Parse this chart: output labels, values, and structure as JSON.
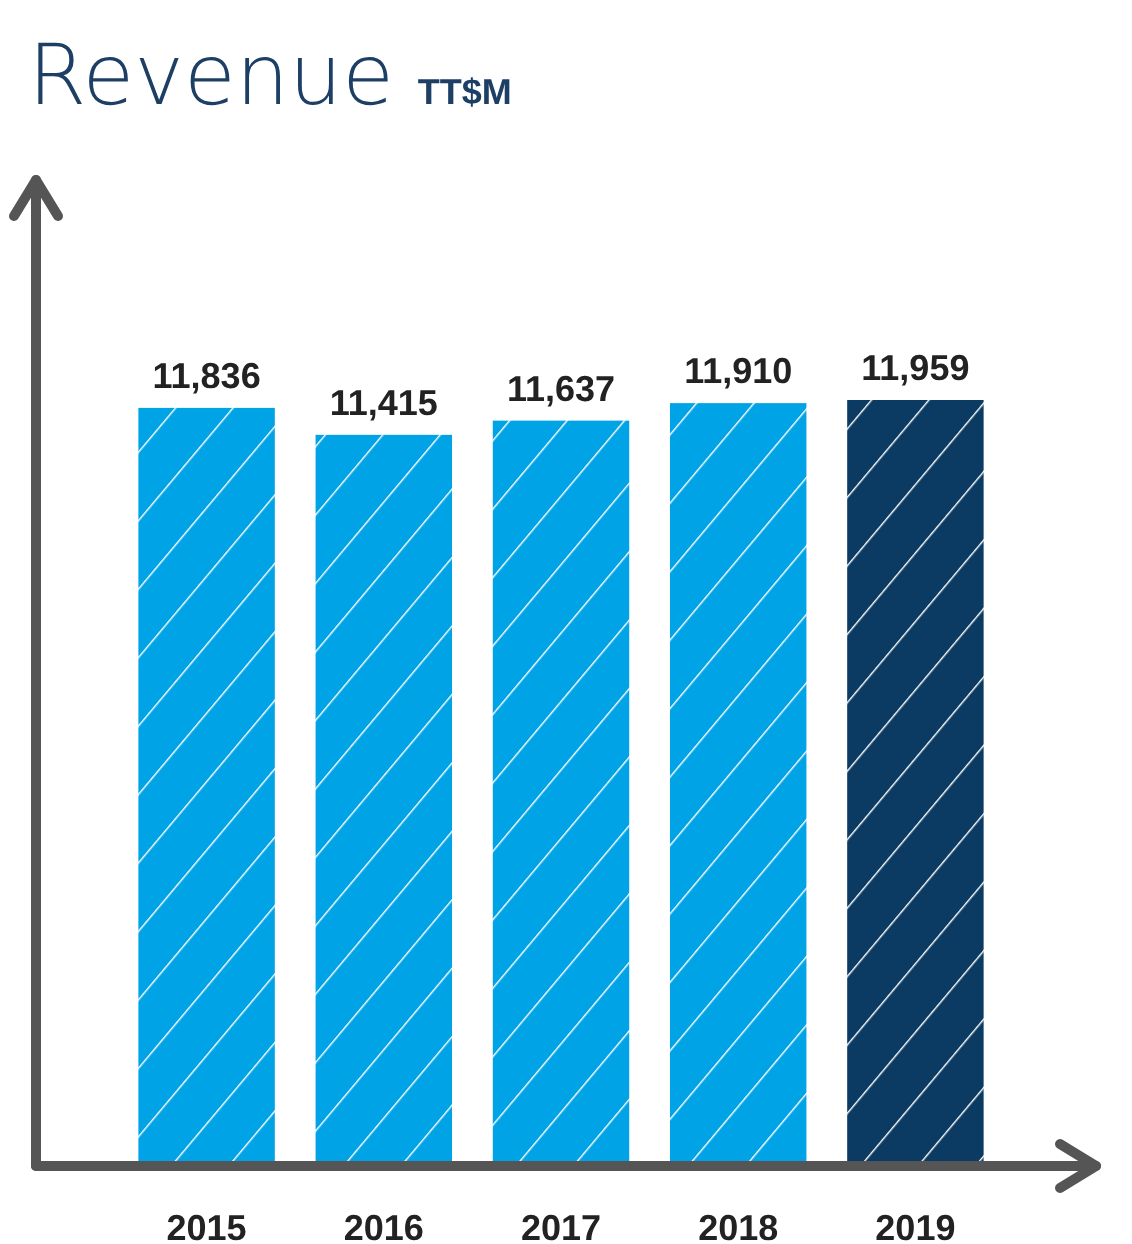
{
  "chart_data": {
    "type": "bar",
    "title": "Revenue",
    "subtitle": "TT$M",
    "categories": [
      "2015",
      "2016",
      "2017",
      "2018",
      "2019"
    ],
    "values": [
      11836,
      11415,
      11637,
      11910,
      11959
    ],
    "value_labels": [
      "11,836",
      "11,415",
      "11,637",
      "11,910",
      "11,959"
    ],
    "colors": [
      "#00a3e6",
      "#00a3e6",
      "#00a3e6",
      "#00a3e6",
      "#0b3a62"
    ]
  }
}
